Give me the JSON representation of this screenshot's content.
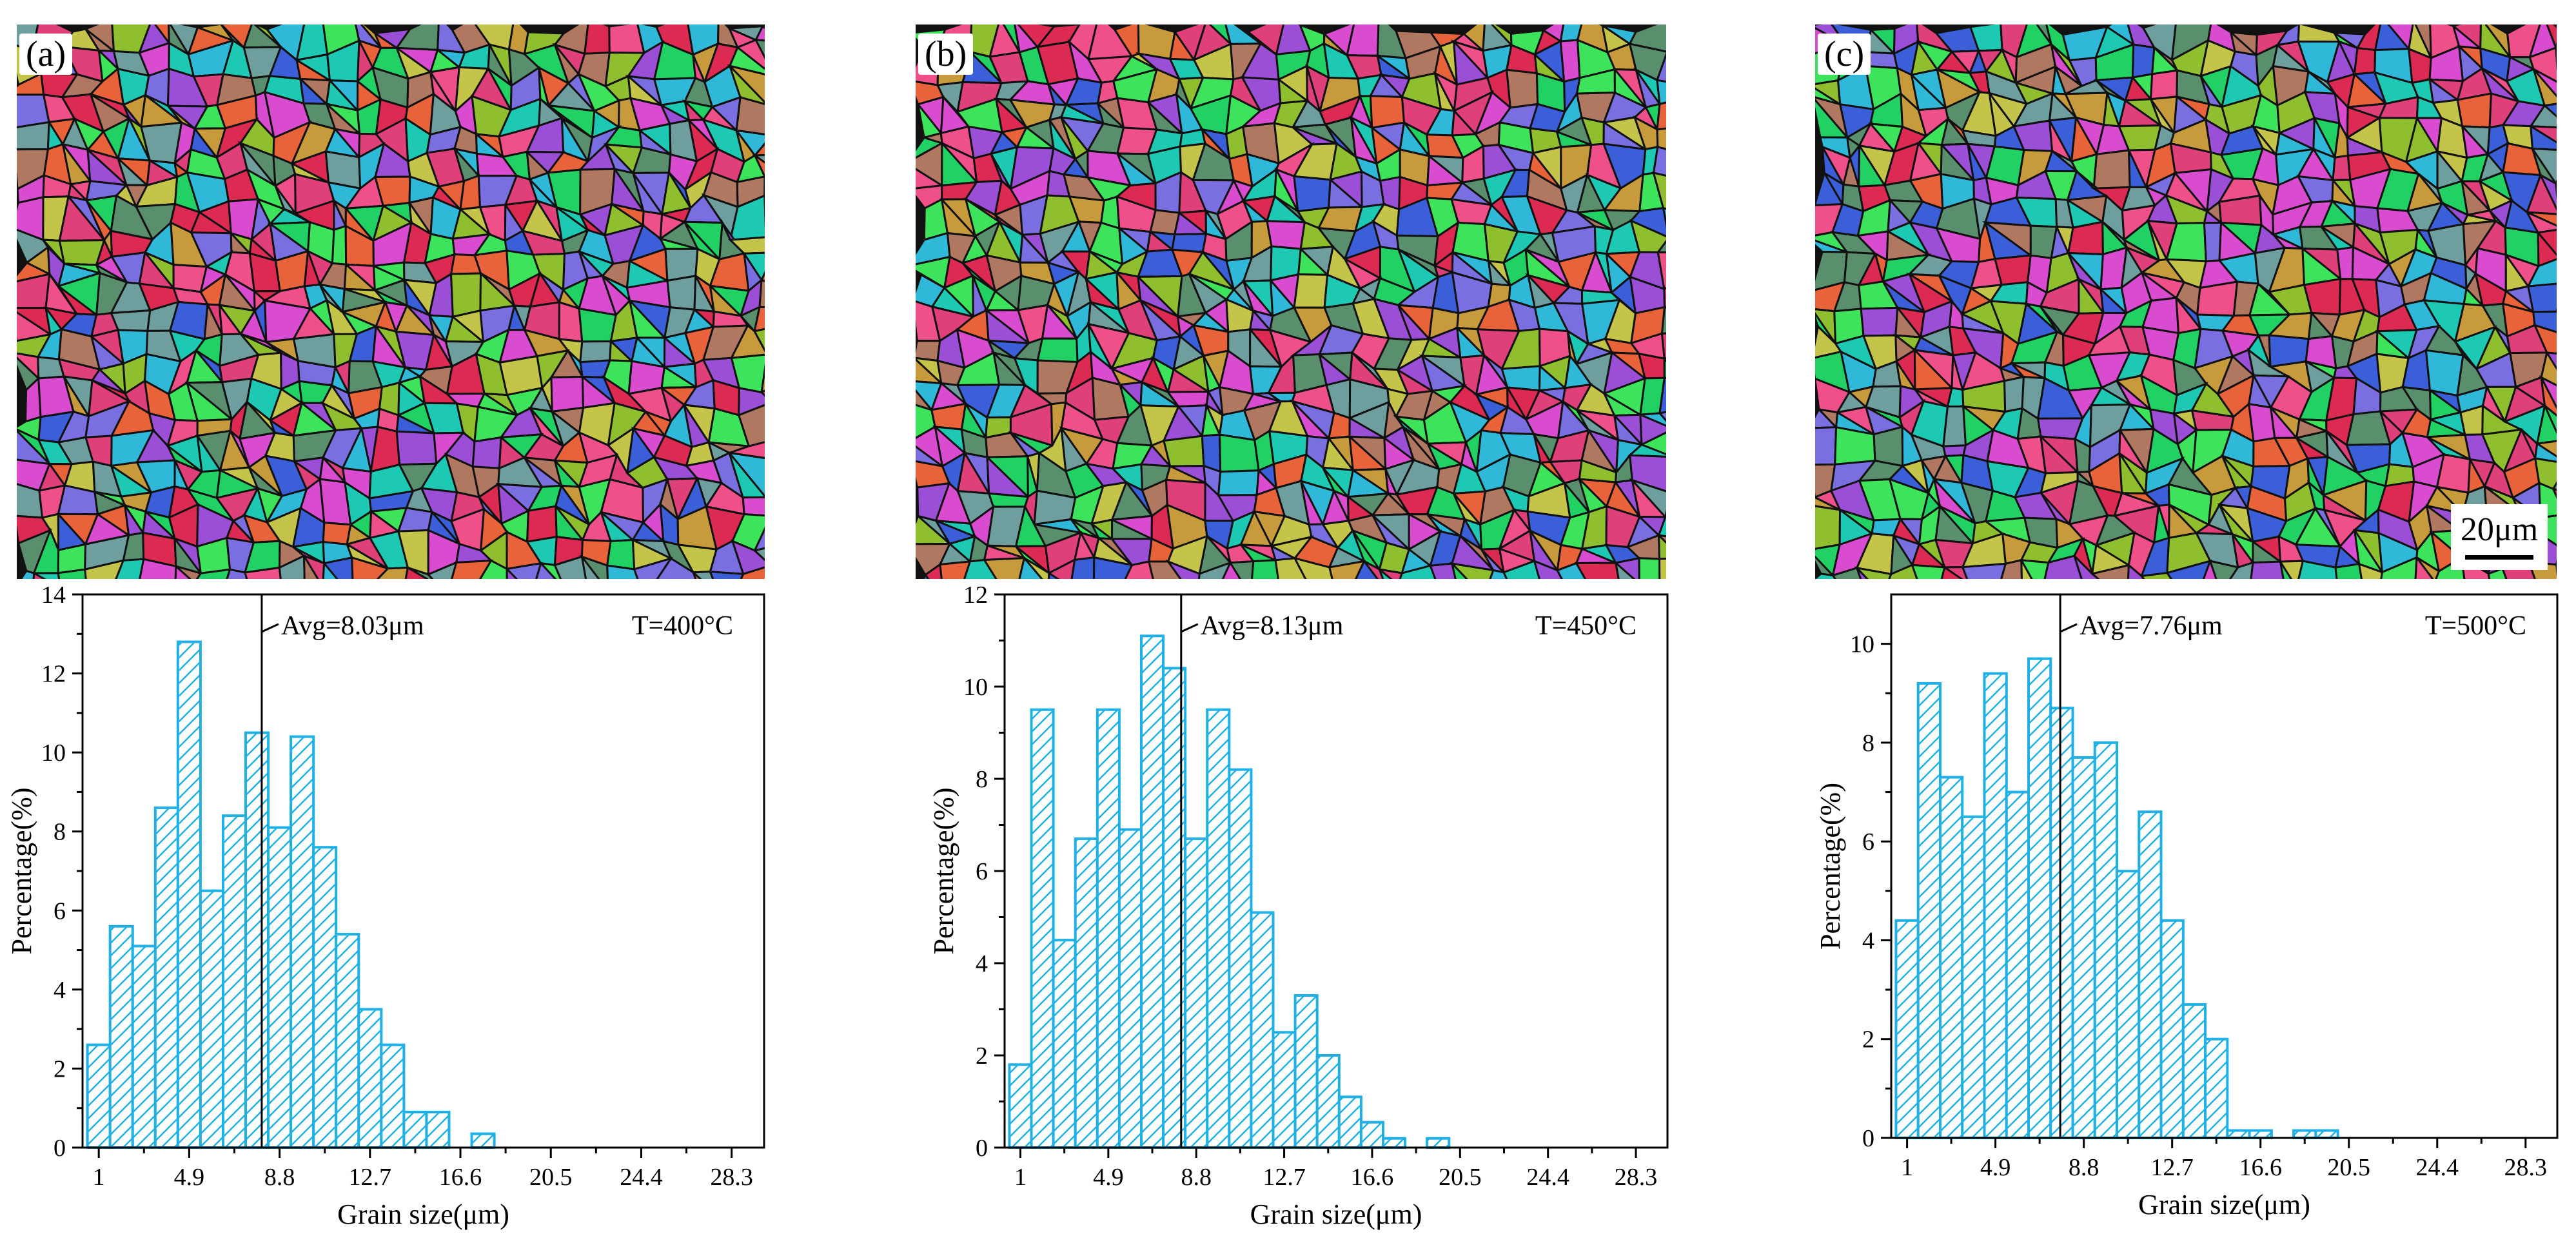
{
  "figure": {
    "panels": [
      {
        "label": "(a)",
        "temperature_label": "T=400°C",
        "avg_label": "Avg=8.03μm"
      },
      {
        "label": "(b)",
        "temperature_label": "T=450°C",
        "avg_label": "Avg=8.13μm"
      },
      {
        "label": "(c)",
        "temperature_label": "T=500°C",
        "avg_label": "Avg=7.76μm"
      }
    ],
    "scale_bar_label": "20μm",
    "colors": {
      "bar_stroke": "#1fb1e6",
      "grain_boundary": "#111111",
      "grain_palette": [
        "#e0407a",
        "#22d163",
        "#3a5fd8",
        "#9a4fd6",
        "#8fbf2e",
        "#1ec9b4",
        "#f0508a",
        "#5a8f6e",
        "#c79a3b",
        "#d94cd0",
        "#3de35a",
        "#b07860",
        "#7a6fe0",
        "#e8623a",
        "#2fb8d8",
        "#c4c44a",
        "#dd2a52",
        "#6e9e9e"
      ]
    }
  },
  "chart_data": [
    {
      "type": "bar",
      "title": "",
      "xlabel": "Grain size(μm)",
      "ylabel": "Percentage(%)",
      "xlim": [
        0.3,
        29.7
      ],
      "ylim": [
        0,
        14
      ],
      "xticks": [
        1,
        4.9,
        8.8,
        12.7,
        16.6,
        20.5,
        24.4,
        28.3
      ],
      "xtick_labels": [
        "1",
        "4.9",
        "8.8",
        "12.7",
        "16.6",
        "20.5",
        "24.4",
        "28.3"
      ],
      "yticks": [
        0,
        2,
        4,
        6,
        8,
        10,
        12,
        14
      ],
      "bin_start": 1,
      "bin_width": 0.975,
      "values": [
        2.6,
        5.6,
        5.1,
        8.6,
        12.8,
        6.5,
        8.4,
        10.5,
        8.1,
        10.4,
        7.6,
        5.4,
        3.5,
        2.6,
        0.9,
        0.9,
        0,
        0.35
      ],
      "avg": 8.03,
      "avg_label": "Avg=8.03μm",
      "annotation": "T=400°C"
    },
    {
      "type": "bar",
      "title": "",
      "xlabel": "Grain size(μm)",
      "ylabel": "Percentage(%)",
      "xlim": [
        0.3,
        29.7
      ],
      "ylim": [
        0,
        12
      ],
      "xticks": [
        1,
        4.9,
        8.8,
        12.7,
        16.6,
        20.5,
        24.4,
        28.3
      ],
      "xtick_labels": [
        "1",
        "4.9",
        "8.8",
        "12.7",
        "16.6",
        "20.5",
        "24.4",
        "28.3"
      ],
      "yticks": [
        0,
        2,
        4,
        6,
        8,
        10,
        12
      ],
      "bin_start": 1,
      "bin_width": 0.975,
      "values": [
        1.8,
        9.5,
        4.5,
        6.7,
        9.5,
        6.9,
        11.1,
        10.4,
        6.7,
        9.5,
        8.2,
        5.1,
        2.5,
        3.3,
        2.0,
        1.1,
        0.55,
        0.2,
        0,
        0.2
      ],
      "avg": 8.13,
      "avg_label": "Avg=8.13μm",
      "annotation": "T=450°C"
    },
    {
      "type": "bar",
      "title": "",
      "xlabel": "Grain size(μm)",
      "ylabel": "Percentage(%)",
      "xlim": [
        0.3,
        29.7
      ],
      "ylim": [
        0,
        11
      ],
      "xticks": [
        1,
        4.9,
        8.8,
        12.7,
        16.6,
        20.5,
        24.4,
        28.3
      ],
      "xtick_labels": [
        "1",
        "4.9",
        "8.8",
        "12.7",
        "16.6",
        "20.5",
        "24.4",
        "28.3"
      ],
      "yticks": [
        0,
        2,
        4,
        6,
        8,
        10
      ],
      "bin_start": 1,
      "bin_width": 0.975,
      "values": [
        4.4,
        9.2,
        7.3,
        6.5,
        9.4,
        7.0,
        9.7,
        8.7,
        7.7,
        8.0,
        5.4,
        6.6,
        4.4,
        2.7,
        2.0,
        0.15,
        0.15,
        0,
        0.15,
        0.15
      ],
      "avg": 7.76,
      "avg_label": "Avg=7.76μm",
      "annotation": "T=500°C"
    }
  ]
}
